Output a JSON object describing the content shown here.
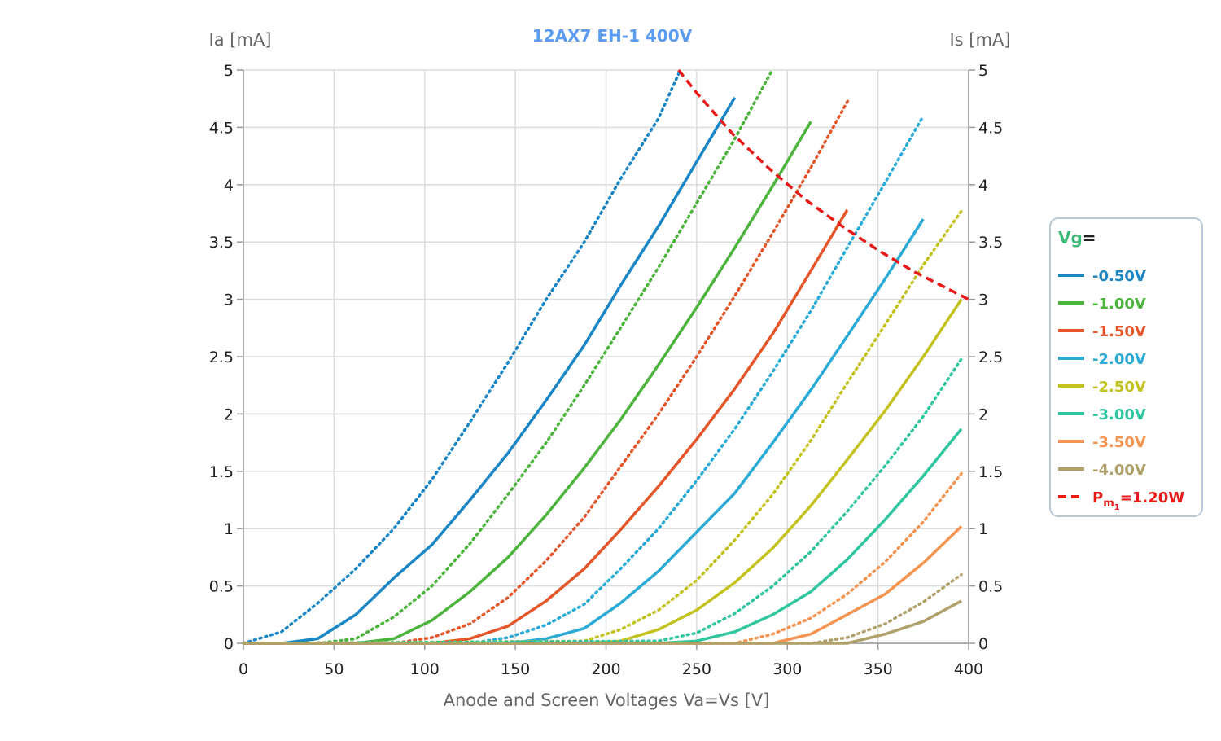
{
  "chart_data": {
    "type": "line",
    "title": "12AX7 EH-1 400V",
    "title_color": "#5b9bf0",
    "xlabel": "Anode and Screen Voltages Va=Vs [V]",
    "ylabel_left": "Ia [mA]",
    "ylabel_right": "Is [mA]",
    "xlim": [
      0,
      400
    ],
    "ylim": [
      0,
      5
    ],
    "x_ticks": [
      "0",
      "50",
      "100",
      "150",
      "200",
      "250",
      "300",
      "350",
      "400"
    ],
    "y_ticks": [
      "0",
      "0.5",
      "1",
      "1.5",
      "2",
      "2.5",
      "3",
      "3.5",
      "4",
      "4.5",
      "5"
    ],
    "grid": true,
    "legend": {
      "title_prefix": "Vg",
      "title_suffix": "=",
      "title_color": "#3cb878",
      "placement": "right"
    },
    "series": [
      {
        "name": "-0.50V",
        "color": "#1a86c6",
        "ia": [
          [
            0,
            0
          ],
          [
            21,
            0
          ],
          [
            41,
            0.04
          ],
          [
            62,
            0.25
          ],
          [
            83,
            0.57
          ],
          [
            104,
            0.86
          ],
          [
            125,
            1.25
          ],
          [
            146,
            1.66
          ],
          [
            167,
            2.12
          ],
          [
            188,
            2.6
          ],
          [
            208,
            3.12
          ],
          [
            229,
            3.64
          ],
          [
            250,
            4.2
          ],
          [
            271,
            4.76
          ]
        ],
        "is": [
          [
            0,
            0
          ],
          [
            21,
            0.1
          ],
          [
            41,
            0.35
          ],
          [
            62,
            0.65
          ],
          [
            83,
            1.0
          ],
          [
            104,
            1.43
          ],
          [
            125,
            1.93
          ],
          [
            146,
            2.45
          ],
          [
            167,
            3.0
          ],
          [
            188,
            3.5
          ],
          [
            208,
            4.05
          ],
          [
            229,
            4.58
          ],
          [
            241,
            5.0
          ]
        ]
      },
      {
        "name": "-1.00V",
        "color": "#4cb33c",
        "ia": [
          [
            0,
            0
          ],
          [
            62,
            0
          ],
          [
            83,
            0.04
          ],
          [
            104,
            0.2
          ],
          [
            125,
            0.45
          ],
          [
            146,
            0.75
          ],
          [
            167,
            1.12
          ],
          [
            188,
            1.53
          ],
          [
            208,
            1.95
          ],
          [
            229,
            2.43
          ],
          [
            250,
            2.93
          ],
          [
            271,
            3.45
          ],
          [
            292,
            3.99
          ],
          [
            313,
            4.55
          ]
        ],
        "is": [
          [
            0,
            0
          ],
          [
            41,
            0
          ],
          [
            62,
            0.04
          ],
          [
            83,
            0.23
          ],
          [
            104,
            0.5
          ],
          [
            125,
            0.87
          ],
          [
            146,
            1.3
          ],
          [
            167,
            1.75
          ],
          [
            188,
            2.25
          ],
          [
            208,
            2.75
          ],
          [
            229,
            3.28
          ],
          [
            250,
            3.84
          ],
          [
            271,
            4.4
          ],
          [
            291,
            4.98
          ]
        ]
      },
      {
        "name": "-1.50V",
        "color": "#e4562a",
        "ia": [
          [
            0,
            0
          ],
          [
            104,
            0
          ],
          [
            125,
            0.04
          ],
          [
            146,
            0.15
          ],
          [
            167,
            0.37
          ],
          [
            188,
            0.65
          ],
          [
            208,
            0.99
          ],
          [
            229,
            1.37
          ],
          [
            250,
            1.78
          ],
          [
            271,
            2.22
          ],
          [
            292,
            2.7
          ],
          [
            313,
            3.25
          ],
          [
            333,
            3.78
          ]
        ],
        "is": [
          [
            0,
            0
          ],
          [
            83,
            0
          ],
          [
            104,
            0.05
          ],
          [
            125,
            0.17
          ],
          [
            146,
            0.4
          ],
          [
            167,
            0.72
          ],
          [
            188,
            1.1
          ],
          [
            208,
            1.54
          ],
          [
            229,
            2.0
          ],
          [
            250,
            2.5
          ],
          [
            271,
            3.03
          ],
          [
            292,
            3.58
          ],
          [
            313,
            4.15
          ],
          [
            334,
            4.75
          ]
        ]
      },
      {
        "name": "-2.00V",
        "color": "#2aabd6",
        "ia": [
          [
            0,
            0
          ],
          [
            146,
            0
          ],
          [
            167,
            0.04
          ],
          [
            188,
            0.13
          ],
          [
            208,
            0.35
          ],
          [
            229,
            0.63
          ],
          [
            250,
            0.97
          ],
          [
            271,
            1.31
          ],
          [
            292,
            1.75
          ],
          [
            313,
            2.21
          ],
          [
            333,
            2.68
          ],
          [
            354,
            3.18
          ],
          [
            375,
            3.7
          ]
        ],
        "is": [
          [
            0,
            0
          ],
          [
            125,
            0
          ],
          [
            146,
            0.05
          ],
          [
            167,
            0.16
          ],
          [
            188,
            0.34
          ],
          [
            208,
            0.65
          ],
          [
            229,
            1.0
          ],
          [
            250,
            1.42
          ],
          [
            271,
            1.87
          ],
          [
            292,
            2.37
          ],
          [
            313,
            2.9
          ],
          [
            333,
            3.45
          ],
          [
            354,
            4.02
          ],
          [
            375,
            4.6
          ]
        ]
      },
      {
        "name": "-2.50V",
        "color": "#c3c21e",
        "ia": [
          [
            0,
            0
          ],
          [
            188,
            0
          ],
          [
            208,
            0.02
          ],
          [
            229,
            0.12
          ],
          [
            250,
            0.29
          ],
          [
            271,
            0.53
          ],
          [
            292,
            0.83
          ],
          [
            313,
            1.2
          ],
          [
            333,
            1.6
          ],
          [
            354,
            2.03
          ],
          [
            375,
            2.5
          ],
          [
            396,
            3.0
          ]
        ],
        "is": [
          [
            0,
            0
          ],
          [
            188,
            0.02
          ],
          [
            208,
            0.12
          ],
          [
            229,
            0.29
          ],
          [
            250,
            0.55
          ],
          [
            271,
            0.9
          ],
          [
            292,
            1.3
          ],
          [
            313,
            1.77
          ],
          [
            333,
            2.27
          ],
          [
            354,
            2.78
          ],
          [
            375,
            3.3
          ],
          [
            396,
            3.77
          ]
        ]
      },
      {
        "name": "-3.00V",
        "color": "#30c6a0",
        "ia": [
          [
            0,
            0
          ],
          [
            229,
            0
          ],
          [
            250,
            0.02
          ],
          [
            271,
            0.1
          ],
          [
            292,
            0.25
          ],
          [
            313,
            0.45
          ],
          [
            333,
            0.73
          ],
          [
            354,
            1.08
          ],
          [
            375,
            1.46
          ],
          [
            396,
            1.87
          ]
        ],
        "is": [
          [
            0,
            0
          ],
          [
            229,
            0.02
          ],
          [
            250,
            0.09
          ],
          [
            271,
            0.26
          ],
          [
            292,
            0.5
          ],
          [
            313,
            0.8
          ],
          [
            333,
            1.15
          ],
          [
            354,
            1.55
          ],
          [
            375,
            1.98
          ],
          [
            396,
            2.48
          ]
        ]
      },
      {
        "name": "-3.50V",
        "color": "#f59450",
        "ia": [
          [
            0,
            0
          ],
          [
            292,
            0
          ],
          [
            313,
            0.08
          ],
          [
            333,
            0.25
          ],
          [
            354,
            0.43
          ],
          [
            375,
            0.7
          ],
          [
            396,
            1.02
          ]
        ],
        "is": [
          [
            0,
            0
          ],
          [
            271,
            0
          ],
          [
            292,
            0.08
          ],
          [
            313,
            0.22
          ],
          [
            333,
            0.43
          ],
          [
            354,
            0.71
          ],
          [
            375,
            1.06
          ],
          [
            396,
            1.48
          ]
        ]
      },
      {
        "name": "-4.00V",
        "color": "#b0a06a",
        "ia": [
          [
            0,
            0
          ],
          [
            333,
            0
          ],
          [
            354,
            0.08
          ],
          [
            375,
            0.19
          ],
          [
            396,
            0.37
          ]
        ],
        "is": [
          [
            0,
            0
          ],
          [
            313,
            0
          ],
          [
            333,
            0.05
          ],
          [
            354,
            0.17
          ],
          [
            375,
            0.36
          ],
          [
            396,
            0.6
          ]
        ]
      }
    ],
    "power_limit": {
      "label_prefix": "P",
      "label_sub": "m",
      "label_subsub": "1",
      "label_suffix": "=1.20W",
      "color": "#e81a1a",
      "points": [
        [
          240,
          5.0
        ],
        [
          250,
          4.8
        ],
        [
          270,
          4.44
        ],
        [
          290,
          4.14
        ],
        [
          310,
          3.87
        ],
        [
          330,
          3.64
        ],
        [
          350,
          3.43
        ],
        [
          370,
          3.24
        ],
        [
          385,
          3.12
        ],
        [
          400,
          3.0
        ]
      ]
    }
  }
}
